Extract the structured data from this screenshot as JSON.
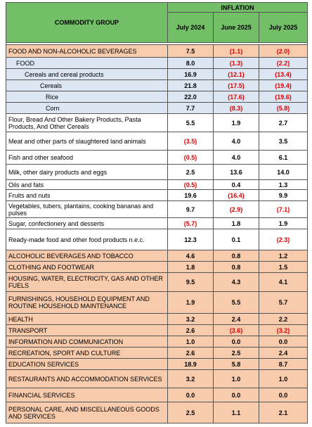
{
  "header": {
    "commodity_group": "COMMODITY GROUP",
    "inflation": "INFLATION",
    "columns": [
      "July 2024",
      "June 2025",
      "July 2025"
    ]
  },
  "table": {
    "rows": [
      [
        "FOOD AND NON-ALCOHOLIC BEVERAGES",
        "7.5",
        "(1.1)",
        "(2.0)"
      ],
      [
        "FOOD",
        "8.0",
        "(1.3)",
        "(2.2)"
      ],
      [
        "Cereals and cereal products",
        "16.9",
        "(12.1)",
        "(13.4)"
      ],
      [
        "Cereals",
        "21.8",
        "(17.5)",
        "(19.4)"
      ],
      [
        "Rice",
        "22.0",
        "(17.6)",
        "(19.6)"
      ],
      [
        "Corn",
        "7.7",
        "(8.3)",
        "(5.8)"
      ],
      [
        "Flour, Bread And Other Bakery Products, Pasta Products, And Other Cereals",
        "5.5",
        "1.9",
        "2.7"
      ],
      [
        "Meat and other parts of slaughtered land animals",
        "(3.5)",
        "4.0",
        "3.5"
      ],
      [
        "Fish and other seafood",
        "(0.5)",
        "4.0",
        "6.1"
      ],
      [
        "Milk, other dairy products and eggs",
        "2.5",
        "13.6",
        "14.0"
      ],
      [
        "Oils and fats",
        "(0.5)",
        "0.4",
        "1.3"
      ],
      [
        "Fruits and nuts",
        "19.6",
        "(16.4)",
        "9.9"
      ],
      [
        "Vegetables, tubers, plantains, cooking bananas and pulses",
        "9.7",
        "(2.9)",
        "(7.1)"
      ],
      [
        "Sugar, confectionery and desserts",
        "(5.7)",
        "1.8",
        "1.9"
      ],
      [
        "Ready-made food and other food products n.e.c.",
        "12.3",
        "0.1",
        "(2.3)"
      ],
      [
        "ALCOHOLIC BEVERAGES AND TOBACCO",
        "4.6",
        "0.8",
        "1.2"
      ],
      [
        "CLOTHING AND FOOTWEAR",
        "1.8",
        "0.8",
        "1.5"
      ],
      [
        "HOUSING, WATER, ELECTRICITY, GAS AND OTHER FUELS",
        "9.5",
        "4.3",
        "4.1"
      ],
      [
        "FURNISHINGS, HOUSEHOLD EQUIPMENT AND ROUTINE HOUSEHOLD MAINTENANCE",
        "1.9",
        "5.5",
        "5.7"
      ],
      [
        "HEALTH",
        "3.2",
        "2.4",
        "2.2"
      ],
      [
        "TRANSPORT",
        "2.6",
        "(3.6)",
        "(3.2)"
      ],
      [
        "INFORMATION AND COMMUNICATION",
        "1.0",
        "0.0",
        "0.0"
      ],
      [
        "RECREATION, SPORT AND CULTURE",
        "2.6",
        "2.5",
        "2.4"
      ],
      [
        "EDUCATION SERVICES",
        "18.9",
        "5.8",
        "8.7"
      ],
      [
        "RESTAURANTS AND ACCOMMODATION SERVICES",
        "3.2",
        "1.0",
        "1.0"
      ],
      [
        "FINANCIAL SERVICES",
        "0.0",
        "0.0",
        "0.0"
      ],
      [
        "PERSONAL CARE, AND MISCELLANEOUS GOODS AND SERVICES",
        "2.5",
        "1.1",
        "2.1"
      ]
    ]
  }
}
